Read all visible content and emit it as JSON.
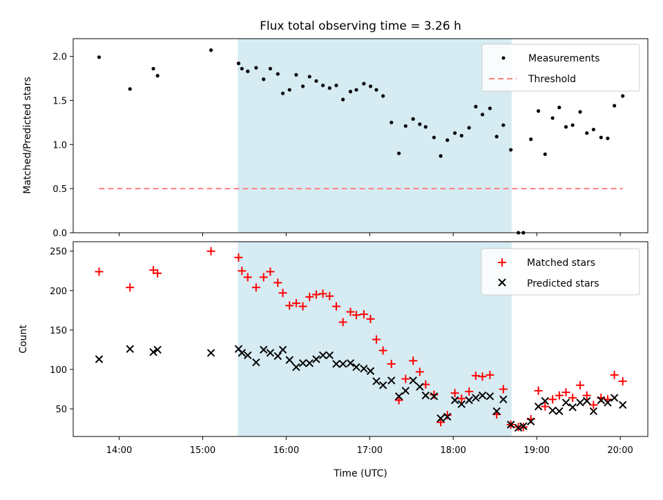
{
  "chart_data": [
    {
      "type": "scatter",
      "title": "Flux total observing time = 3.26 h",
      "xlabel": "",
      "ylabel": "Matched/Predicted stars",
      "ylim": [
        0,
        2.2
      ],
      "yticks": [
        "0.0",
        "0.5",
        "1.0",
        "1.5",
        "2.0"
      ],
      "ytick_values": [
        0,
        0.5,
        1.0,
        1.5,
        2.0
      ],
      "shaded_region": {
        "from": 15.42,
        "to": 18.7,
        "color": "#add8e6"
      },
      "legend_position": "top-right",
      "series": [
        {
          "name": "Measurements",
          "marker": "dot",
          "color": "#000000",
          "points": [
            [
              13.76,
              1.99
            ],
            [
              14.13,
              1.63
            ],
            [
              14.41,
              1.86
            ],
            [
              14.46,
              1.78
            ],
            [
              15.1,
              2.07
            ],
            [
              15.43,
              1.92
            ],
            [
              15.47,
              1.86
            ],
            [
              15.54,
              1.83
            ],
            [
              15.64,
              1.87
            ],
            [
              15.73,
              1.74
            ],
            [
              15.81,
              1.86
            ],
            [
              15.9,
              1.8
            ],
            [
              15.96,
              1.58
            ],
            [
              16.04,
              1.62
            ],
            [
              16.12,
              1.79
            ],
            [
              16.2,
              1.66
            ],
            [
              16.28,
              1.77
            ],
            [
              16.36,
              1.72
            ],
            [
              16.44,
              1.67
            ],
            [
              16.52,
              1.64
            ],
            [
              16.6,
              1.67
            ],
            [
              16.68,
              1.51
            ],
            [
              16.77,
              1.6
            ],
            [
              16.84,
              1.62
            ],
            [
              16.93,
              1.69
            ],
            [
              17.01,
              1.66
            ],
            [
              17.08,
              1.62
            ],
            [
              17.16,
              1.55
            ],
            [
              17.26,
              1.25
            ],
            [
              17.35,
              0.9
            ],
            [
              17.43,
              1.21
            ],
            [
              17.52,
              1.29
            ],
            [
              17.6,
              1.23
            ],
            [
              17.67,
              1.2
            ],
            [
              17.77,
              1.08
            ],
            [
              17.85,
              0.87
            ],
            [
              17.93,
              1.05
            ],
            [
              18.02,
              1.13
            ],
            [
              18.1,
              1.1
            ],
            [
              18.19,
              1.19
            ],
            [
              18.27,
              1.43
            ],
            [
              18.35,
              1.34
            ],
            [
              18.44,
              1.41
            ],
            [
              18.52,
              1.09
            ],
            [
              18.6,
              1.22
            ],
            [
              18.69,
              0.94
            ],
            [
              18.78,
              0.0
            ],
            [
              18.84,
              0.0
            ],
            [
              18.93,
              1.06
            ],
            [
              19.02,
              1.38
            ],
            [
              19.1,
              0.89
            ],
            [
              19.19,
              1.3
            ],
            [
              19.27,
              1.42
            ],
            [
              19.35,
              1.2
            ],
            [
              19.43,
              1.22
            ],
            [
              19.52,
              1.37
            ],
            [
              19.6,
              1.13
            ],
            [
              19.68,
              1.17
            ],
            [
              19.77,
              1.08
            ],
            [
              19.85,
              1.07
            ],
            [
              19.93,
              1.44
            ],
            [
              20.03,
              1.55
            ]
          ]
        },
        {
          "name": "Threshold",
          "marker": "dashed-line",
          "color": "#ff7f7f",
          "points": [
            [
              13.76,
              0.5
            ],
            [
              20.03,
              0.5
            ]
          ]
        }
      ]
    },
    {
      "type": "scatter",
      "title": "",
      "xlabel": "Time (UTC)",
      "ylabel": "Count",
      "ylim": [
        15,
        262
      ],
      "yticks": [
        "50",
        "100",
        "150",
        "200",
        "250"
      ],
      "ytick_values": [
        50,
        100,
        150,
        200,
        250
      ],
      "xlim": [
        13.45,
        20.33
      ],
      "xticks": [
        "14:00",
        "15:00",
        "16:00",
        "17:00",
        "18:00",
        "19:00",
        "20:00"
      ],
      "xtick_values": [
        14,
        15,
        16,
        17,
        18,
        19,
        20
      ],
      "shaded_region": {
        "from": 15.42,
        "to": 18.7,
        "color": "#add8e6"
      },
      "legend_position": "top-right",
      "series": [
        {
          "name": "Matched stars",
          "marker": "plus",
          "color": "#ff0000",
          "points": [
            [
              13.76,
              224
            ],
            [
              14.13,
              204
            ],
            [
              14.41,
              226
            ],
            [
              14.46,
              222
            ],
            [
              15.1,
              250
            ],
            [
              15.43,
              242
            ],
            [
              15.47,
              225
            ],
            [
              15.54,
              217
            ],
            [
              15.64,
              204
            ],
            [
              15.73,
              217
            ],
            [
              15.81,
              224
            ],
            [
              15.9,
              210
            ],
            [
              15.96,
              197
            ],
            [
              16.04,
              181
            ],
            [
              16.12,
              184
            ],
            [
              16.2,
              180
            ],
            [
              16.28,
              192
            ],
            [
              16.36,
              195
            ],
            [
              16.44,
              196
            ],
            [
              16.52,
              193
            ],
            [
              16.6,
              180
            ],
            [
              16.68,
              160
            ],
            [
              16.77,
              173
            ],
            [
              16.84,
              169
            ],
            [
              16.93,
              170
            ],
            [
              17.01,
              164
            ],
            [
              17.08,
              138
            ],
            [
              17.16,
              124
            ],
            [
              17.26,
              107
            ],
            [
              17.35,
              61
            ],
            [
              17.43,
              88
            ],
            [
              17.52,
              111
            ],
            [
              17.6,
              97
            ],
            [
              17.67,
              81
            ],
            [
              17.77,
              68
            ],
            [
              17.85,
              33
            ],
            [
              17.93,
              42
            ],
            [
              18.02,
              70
            ],
            [
              18.1,
              63
            ],
            [
              18.19,
              72
            ],
            [
              18.27,
              92
            ],
            [
              18.35,
              91
            ],
            [
              18.44,
              93
            ],
            [
              18.52,
              43
            ],
            [
              18.6,
              75
            ],
            [
              18.69,
              30
            ],
            [
              18.78,
              27
            ],
            [
              18.84,
              27
            ],
            [
              18.93,
              37
            ],
            [
              19.02,
              73
            ],
            [
              19.1,
              53
            ],
            [
              19.19,
              62
            ],
            [
              19.27,
              67
            ],
            [
              19.35,
              71
            ],
            [
              19.43,
              64
            ],
            [
              19.52,
              80
            ],
            [
              19.6,
              67
            ],
            [
              19.68,
              55
            ],
            [
              19.77,
              64
            ],
            [
              19.85,
              62
            ],
            [
              19.93,
              93
            ],
            [
              20.03,
              85
            ]
          ]
        },
        {
          "name": "Predicted stars",
          "marker": "x",
          "color": "#000000",
          "points": [
            [
              13.76,
              113
            ],
            [
              14.13,
              126
            ],
            [
              14.41,
              122
            ],
            [
              14.46,
              125
            ],
            [
              15.1,
              121
            ],
            [
              15.43,
              126
            ],
            [
              15.47,
              121
            ],
            [
              15.54,
              118
            ],
            [
              15.64,
              109
            ],
            [
              15.73,
              125
            ],
            [
              15.81,
              121
            ],
            [
              15.9,
              117
            ],
            [
              15.96,
              125
            ],
            [
              16.04,
              112
            ],
            [
              16.12,
              103
            ],
            [
              16.2,
              108
            ],
            [
              16.28,
              108
            ],
            [
              16.36,
              113
            ],
            [
              16.44,
              118
            ],
            [
              16.52,
              118
            ],
            [
              16.6,
              107
            ],
            [
              16.68,
              107
            ],
            [
              16.77,
              108
            ],
            [
              16.84,
              103
            ],
            [
              16.93,
              101
            ],
            [
              17.01,
              98
            ],
            [
              17.08,
              85
            ],
            [
              17.16,
              80
            ],
            [
              17.26,
              86
            ],
            [
              17.35,
              66
            ],
            [
              17.43,
              73
            ],
            [
              17.52,
              86
            ],
            [
              17.6,
              78
            ],
            [
              17.67,
              67
            ],
            [
              17.77,
              66
            ],
            [
              17.85,
              38
            ],
            [
              17.93,
              40
            ],
            [
              18.02,
              61
            ],
            [
              18.1,
              56
            ],
            [
              18.19,
              61
            ],
            [
              18.27,
              64
            ],
            [
              18.35,
              67
            ],
            [
              18.44,
              66
            ],
            [
              18.52,
              47
            ],
            [
              18.6,
              62
            ],
            [
              18.69,
              30
            ],
            [
              18.78,
              26
            ],
            [
              18.84,
              28
            ],
            [
              18.93,
              34
            ],
            [
              19.02,
              53
            ],
            [
              19.1,
              60
            ],
            [
              19.19,
              48
            ],
            [
              19.27,
              47
            ],
            [
              19.35,
              58
            ],
            [
              19.43,
              52
            ],
            [
              19.52,
              58
            ],
            [
              19.6,
              60
            ],
            [
              19.68,
              47
            ],
            [
              19.77,
              61
            ],
            [
              19.85,
              58
            ],
            [
              19.93,
              64
            ],
            [
              20.03,
              55
            ]
          ]
        }
      ]
    }
  ]
}
